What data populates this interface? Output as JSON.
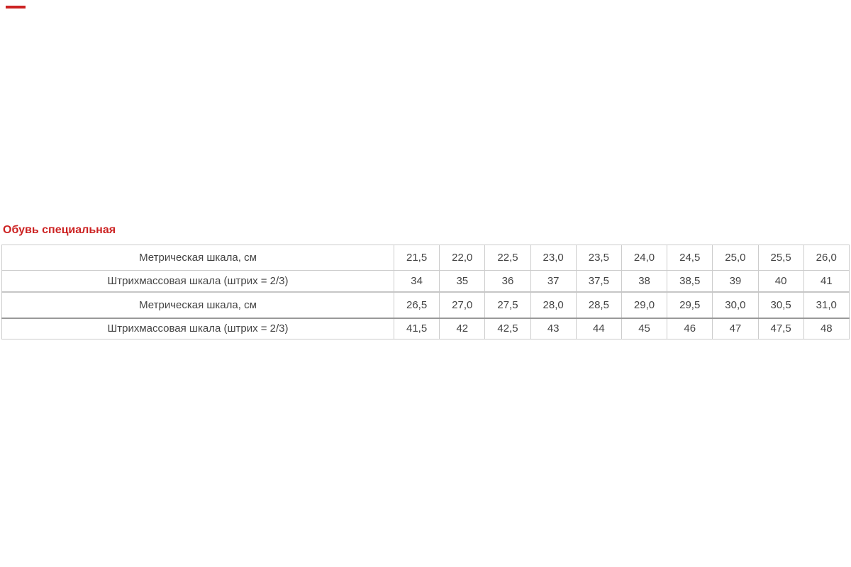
{
  "page": {
    "heading": "Обувь специальная",
    "colors": {
      "heading_red": "#cc2222",
      "table_border": "#cccccc",
      "section_divider": "#999999",
      "cell_text": "#444444"
    }
  },
  "table": {
    "sections": [
      {
        "rows": [
          {
            "label": "Метрическая шкала, см",
            "values": [
              "21,5",
              "22,0",
              "22,5",
              "23,0",
              "23,5",
              "24,0",
              "24,5",
              "25,0",
              "25,5",
              "26,0"
            ]
          },
          {
            "label": "Штрихмассовая шкала (штрих = 2/3)",
            "values": [
              "34",
              "35",
              "36",
              "37",
              "37,5",
              "38",
              "38,5",
              "39",
              "40",
              "41"
            ]
          }
        ]
      },
      {
        "rows": [
          {
            "label": "Метрическая шкала, см",
            "values": [
              "26,5",
              "27,0",
              "27,5",
              "28,0",
              "28,5",
              "29,0",
              "29,5",
              "30,0",
              "30,5",
              "31,0"
            ]
          },
          {
            "label": "Штрихмассовая шкала (штрих = 2/3)",
            "values": [
              "41,5",
              "42",
              "42,5",
              "43",
              "44",
              "45",
              "46",
              "47",
              "47,5",
              "48"
            ]
          }
        ]
      }
    ]
  }
}
